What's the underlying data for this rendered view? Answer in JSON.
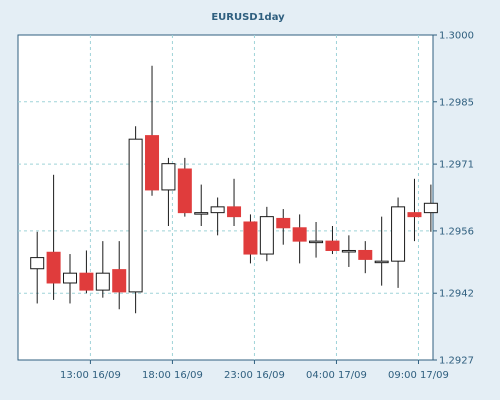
{
  "chart_data": {
    "type": "candlestick",
    "title": "EURUSD1day",
    "xlabel": "",
    "ylabel": "",
    "ylim": [
      1.2927,
      1.3
    ],
    "yticks": [
      "1.2927",
      "1.2942",
      "1.2956",
      "1.2971",
      "1.2985",
      "1.3000"
    ],
    "xticks": [
      "13:00 16/09",
      "18:00 16/09",
      "23:00 16/09",
      "04:00 17/09",
      "09:00 17/09"
    ],
    "grid": true,
    "colors": {
      "background": "#e4eef5",
      "plot": "#ffffff",
      "grid": "#9fd3d8",
      "axis": "#2f5f7f",
      "text": "#2f5f7f",
      "bull_fill": "#ffffff",
      "bear_fill": "#e03c3c",
      "outline": "#1a1a1a"
    },
    "candles": [
      {
        "open": 1.29475,
        "high": 1.29558,
        "low": 1.29397,
        "close": 1.295
      },
      {
        "open": 1.29512,
        "high": 1.29686,
        "low": 1.29405,
        "close": 1.29443
      },
      {
        "open": 1.29443,
        "high": 1.29508,
        "low": 1.29397,
        "close": 1.29465
      },
      {
        "open": 1.29465,
        "high": 1.29516,
        "low": 1.2942,
        "close": 1.29427
      },
      {
        "open": 1.29427,
        "high": 1.29537,
        "low": 1.2941,
        "close": 1.29465
      },
      {
        "open": 1.29473,
        "high": 1.29537,
        "low": 1.29384,
        "close": 1.29423
      },
      {
        "open": 1.29423,
        "high": 1.29795,
        "low": 1.29375,
        "close": 1.29766
      },
      {
        "open": 1.29774,
        "high": 1.29931,
        "low": 1.29639,
        "close": 1.29652
      },
      {
        "open": 1.29652,
        "high": 1.29724,
        "low": 1.29571,
        "close": 1.29711
      },
      {
        "open": 1.29699,
        "high": 1.29724,
        "low": 1.29592,
        "close": 1.29601
      },
      {
        "open": 1.29601,
        "high": 1.29664,
        "low": 1.29571,
        "close": 1.29601
      },
      {
        "open": 1.29601,
        "high": 1.29635,
        "low": 1.2955,
        "close": 1.29614
      },
      {
        "open": 1.29614,
        "high": 1.29677,
        "low": 1.29571,
        "close": 1.29592
      },
      {
        "open": 1.2958,
        "high": 1.29597,
        "low": 1.29487,
        "close": 1.29508
      },
      {
        "open": 1.29508,
        "high": 1.29614,
        "low": 1.29492,
        "close": 1.29592
      },
      {
        "open": 1.29588,
        "high": 1.29609,
        "low": 1.29529,
        "close": 1.29567
      },
      {
        "open": 1.29567,
        "high": 1.29597,
        "low": 1.29487,
        "close": 1.29537
      },
      {
        "open": 1.29537,
        "high": 1.2958,
        "low": 1.295,
        "close": 1.29537
      },
      {
        "open": 1.29537,
        "high": 1.29571,
        "low": 1.29508,
        "close": 1.29516
      },
      {
        "open": 1.29516,
        "high": 1.2955,
        "low": 1.29479,
        "close": 1.29516
      },
      {
        "open": 1.29516,
        "high": 1.29537,
        "low": 1.29465,
        "close": 1.29496
      },
      {
        "open": 1.29492,
        "high": 1.29592,
        "low": 1.29437,
        "close": 1.29492
      },
      {
        "open": 1.29492,
        "high": 1.29635,
        "low": 1.29432,
        "close": 1.29614
      },
      {
        "open": 1.29601,
        "high": 1.29677,
        "low": 1.29537,
        "close": 1.29592
      },
      {
        "open": 1.29601,
        "high": 1.29664,
        "low": 1.29558,
        "close": 1.29622
      }
    ]
  }
}
